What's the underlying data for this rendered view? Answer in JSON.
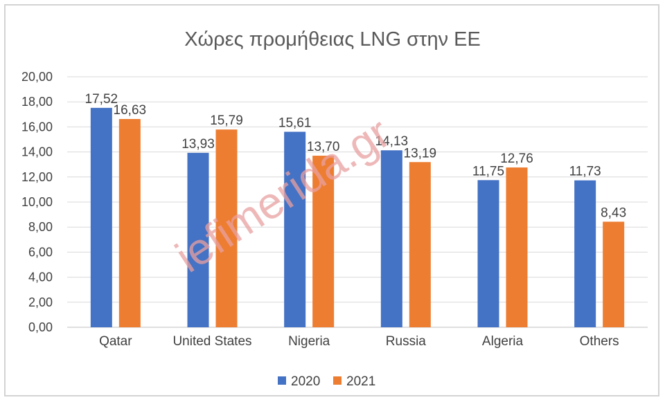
{
  "chart_data": {
    "type": "bar",
    "title": "Χώρες προμήθειας LNG  στην ΕΕ",
    "categories": [
      "Qatar",
      "United States",
      "Nigeria",
      "Russia",
      "Algeria",
      "Others"
    ],
    "series": [
      {
        "name": "2020",
        "color": "#4472c4",
        "values": [
          17.52,
          13.93,
          15.61,
          14.13,
          11.75,
          11.73
        ],
        "labels": [
          "17,52",
          "13,93",
          "15,61",
          "14,13",
          "11,75",
          "11,73"
        ]
      },
      {
        "name": "2021",
        "color": "#ed7d31",
        "values": [
          16.63,
          15.79,
          13.7,
          13.19,
          12.76,
          8.43
        ],
        "labels": [
          "16,63",
          "15,79",
          "13,70",
          "13,19",
          "12,76",
          "8,43"
        ]
      }
    ],
    "ylim": [
      0,
      20
    ],
    "yticks": [
      "0,00",
      "2,00",
      "4,00",
      "6,00",
      "8,00",
      "10,00",
      "12,00",
      "14,00",
      "16,00",
      "18,00",
      "20,00"
    ],
    "grid": true,
    "legend": "bottom",
    "xlabel": "",
    "ylabel": ""
  },
  "watermark": "iefimerida.gr"
}
